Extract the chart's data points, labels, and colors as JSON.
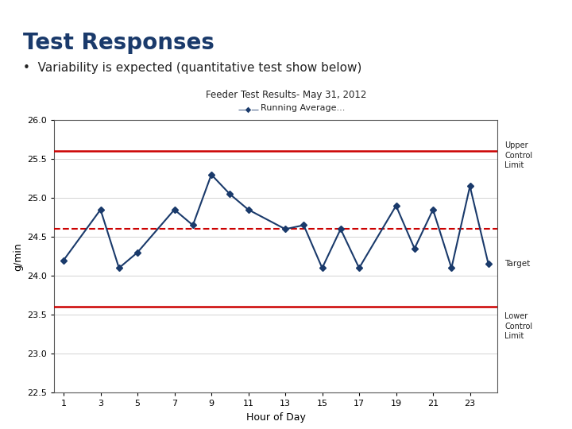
{
  "title": "Feeder Test Results- May 31, 2012",
  "main_title": "Test Responses",
  "bullet_text": "Variability is expected (quantitative test show below)",
  "legend_label": "Running Average...",
  "xlabel": "Hour of Day",
  "ylabel": "g/min",
  "x_values": [
    1,
    3,
    4,
    5,
    7,
    8,
    9,
    10,
    11,
    13,
    14,
    15,
    16,
    17,
    19,
    20,
    21,
    22,
    23,
    24
  ],
  "y_values": [
    24.2,
    24.85,
    24.1,
    24.3,
    24.85,
    24.65,
    25.3,
    25.05,
    24.85,
    24.6,
    24.65,
    24.1,
    24.6,
    24.1,
    24.9,
    24.35,
    24.85,
    24.1,
    25.15,
    24.15
  ],
  "upper_control_limit": 25.6,
  "lower_control_limit": 23.6,
  "target": 24.6,
  "ylim_min": 22.5,
  "ylim_max": 26.0,
  "yticks": [
    22.5,
    23.0,
    23.5,
    24.0,
    24.5,
    25.0,
    25.5,
    26.0
  ],
  "xticks": [
    1,
    3,
    5,
    7,
    9,
    11,
    13,
    15,
    17,
    19,
    21,
    23
  ],
  "line_color": "#1a3a6b",
  "ucl_color": "#cc0000",
  "lcl_color": "#cc0000",
  "target_color": "#cc0000",
  "title_color": "#1a3a6b",
  "text_color": "#222222",
  "top_bar_color": "#4472c4",
  "top_bar2_color": "#7a8cb0",
  "bg_color": "#ffffff"
}
